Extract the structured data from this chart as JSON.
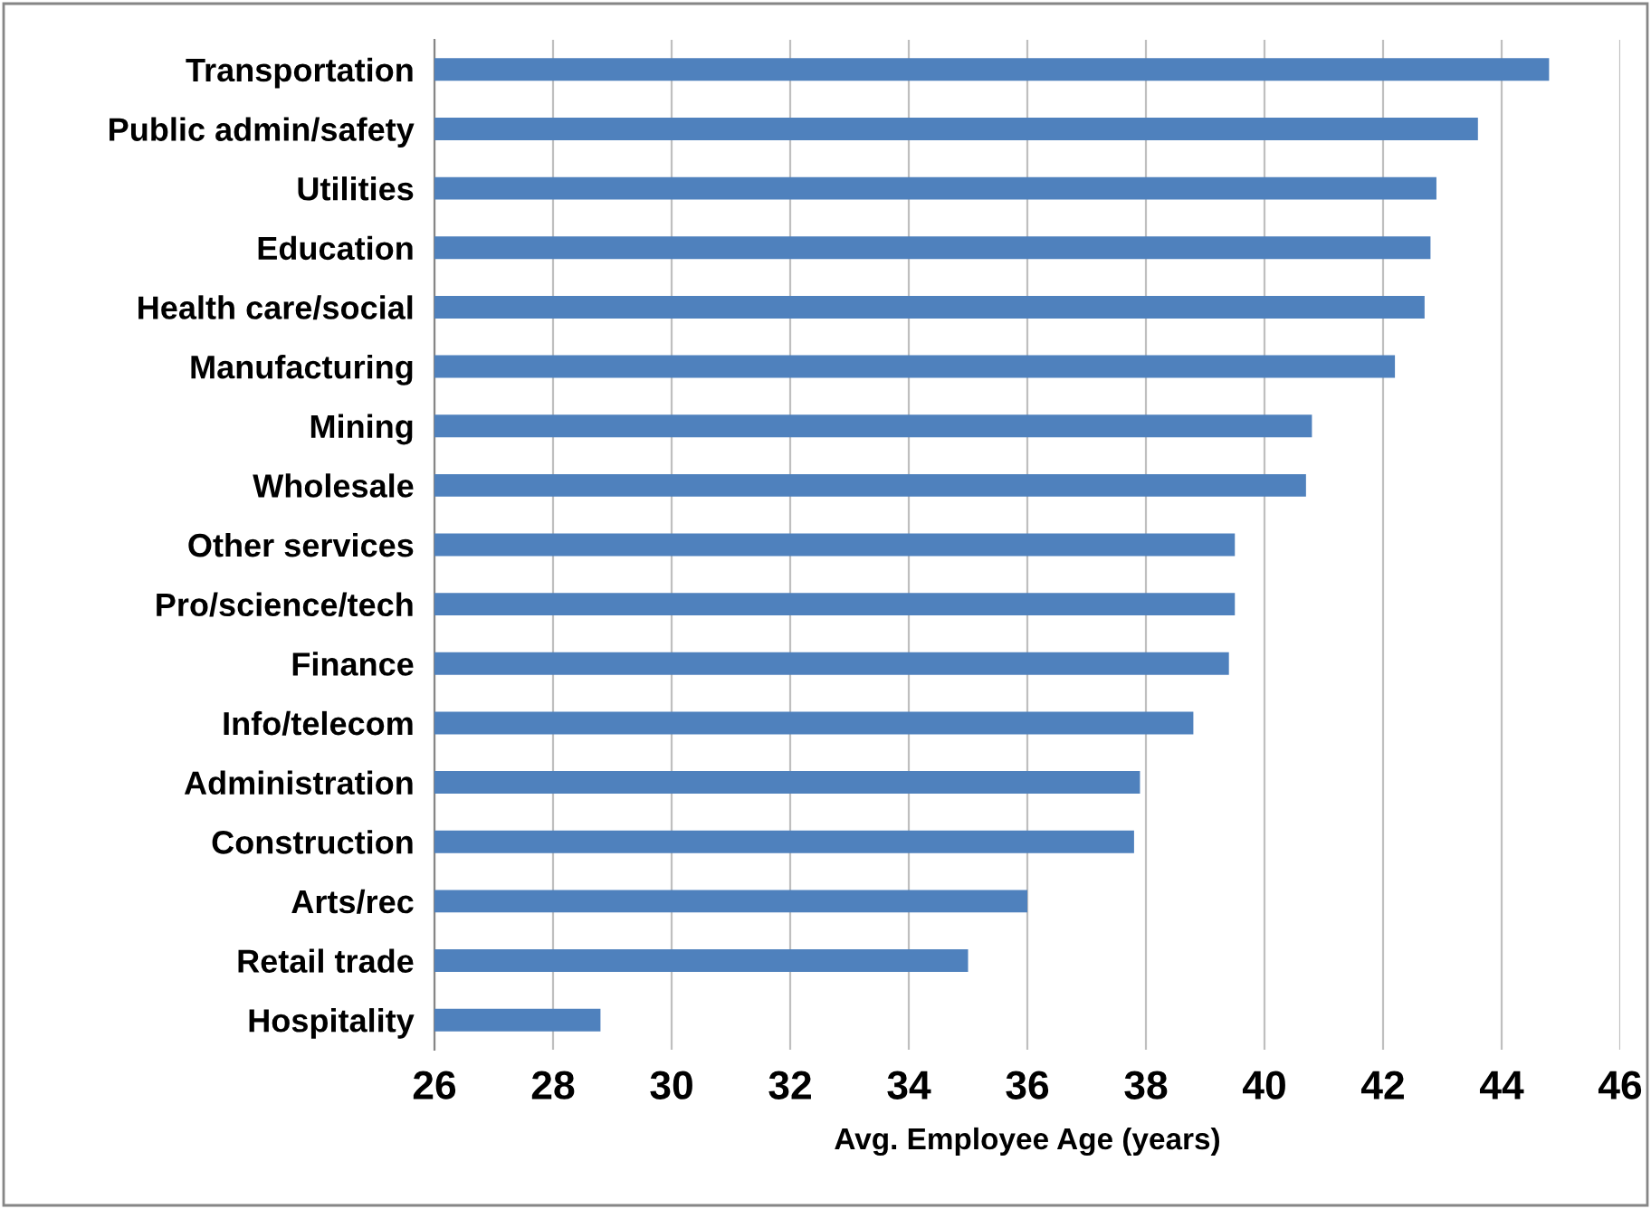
{
  "chart_data": {
    "type": "bar",
    "orientation": "horizontal",
    "xlabel": "Avg. Employee Age (years)",
    "categories": [
      "Transportation",
      "Public admin/safety",
      "Utilities",
      "Education",
      "Health care/social",
      "Manufacturing",
      "Mining",
      "Wholesale",
      "Other services",
      "Pro/science/tech",
      "Finance",
      "Info/telecom",
      "Administration",
      "Construction",
      "Arts/rec",
      "Retail trade",
      "Hospitality"
    ],
    "values": [
      44.8,
      43.6,
      42.9,
      42.8,
      42.7,
      42.2,
      40.8,
      40.7,
      39.5,
      39.5,
      39.4,
      38.8,
      37.9,
      37.8,
      36.0,
      35.0,
      28.8
    ],
    "color": "#4f81bd",
    "xlim": [
      26,
      46
    ],
    "xticks": [
      26,
      28,
      30,
      32,
      34,
      36,
      38,
      40,
      42,
      44,
      46
    ],
    "grid": "x",
    "legend": false
  }
}
